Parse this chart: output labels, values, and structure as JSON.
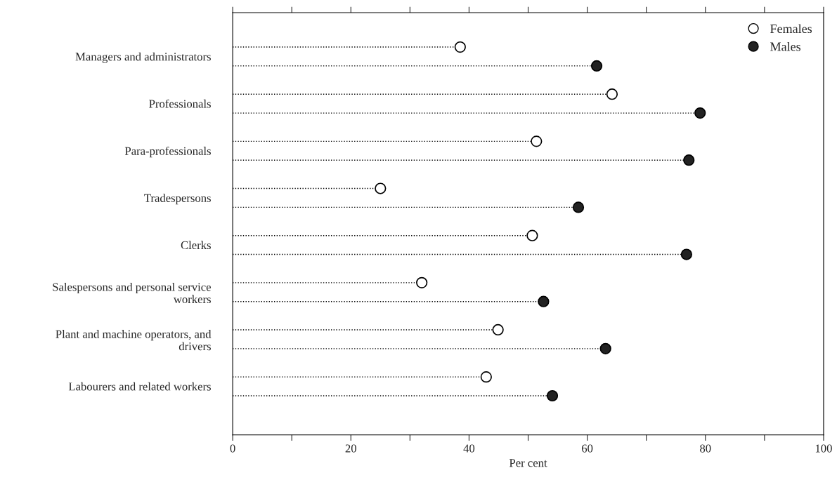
{
  "chart_data": {
    "type": "lollipop",
    "orientation": "horizontal",
    "xlabel": "Per cent",
    "categories": [
      "Managers and administrators",
      "Professionals",
      "Para-professionals",
      "Tradespersons",
      "Clerks",
      "Salespersons and personal service\nworkers",
      "Plant and machine operators, and\ndrivers",
      "Labourers and related workers"
    ],
    "series": [
      {
        "name": "Females",
        "color": "#ffffff",
        "values": [
          38.5,
          64.2,
          51.4,
          25.0,
          50.7,
          32.0,
          44.9,
          42.9
        ]
      },
      {
        "name": "Males",
        "color": "#222222",
        "values": [
          61.6,
          79.1,
          77.2,
          58.5,
          76.8,
          52.6,
          63.1,
          54.1
        ]
      }
    ],
    "xlim": [
      0,
      100
    ],
    "xticks": [
      0,
      {
        "value": 10,
        "label": null
      },
      20,
      {
        "value": 30,
        "label": null
      },
      40,
      {
        "value": 50,
        "label": null
      },
      60,
      {
        "value": 70,
        "label": null
      },
      80,
      {
        "value": 90,
        "label": null
      },
      100
    ],
    "marker": "circle",
    "line_style": "dotted",
    "legend": "top right",
    "grid": false
  }
}
